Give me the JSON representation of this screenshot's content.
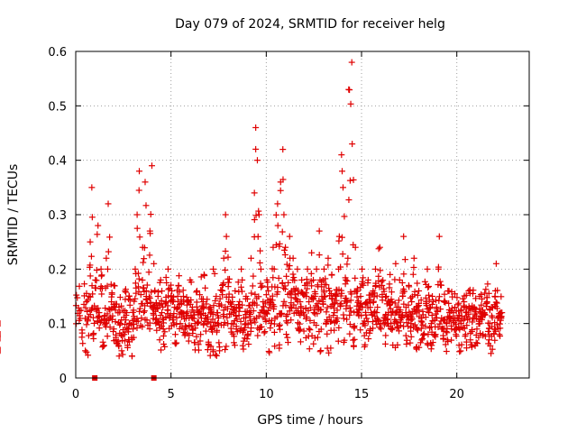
{
  "chart_data": {
    "type": "scatter",
    "title": "Day 079 of 2024, SRMTID for receiver helg",
    "xlabel": "GPS time / hours",
    "ylabel": "SRMTID / TECUs",
    "xlim": [
      0,
      23.8
    ],
    "ylim": [
      0,
      0.6
    ],
    "xticks": [
      0,
      5,
      10,
      15,
      20
    ],
    "yticks": [
      0,
      0.1,
      0.2,
      0.3,
      0.4,
      0.5,
      0.6
    ],
    "xtick_labels": [
      "0",
      "5",
      "10",
      "15",
      "20"
    ],
    "ytick_labels": [
      "0",
      "0.1",
      "0.2",
      "0.3",
      "0.4",
      "0.5",
      "0.6"
    ],
    "grid": true,
    "marker": "+",
    "color": "#e00000",
    "series": [
      {
        "name": "SRMTID",
        "x": [
          0.0,
          0.1,
          0.2,
          0.3,
          0.4,
          0.5,
          0.6,
          0.7,
          0.8,
          0.9,
          1.0,
          1.1,
          1.2,
          1.3,
          1.4,
          1.5,
          1.6,
          1.7,
          1.8,
          1.9,
          2.0,
          2.1,
          2.2,
          2.3,
          2.4,
          2.5,
          2.6,
          2.7,
          2.8,
          2.9,
          3.0,
          3.1,
          3.2,
          3.3,
          3.4,
          3.5,
          3.6,
          3.7,
          3.8,
          3.9,
          4.0,
          4.1,
          4.2,
          4.3,
          4.4,
          4.5,
          4.6,
          4.7,
          4.8,
          4.9,
          5.0,
          5.1,
          5.2,
          5.3,
          5.4,
          5.5,
          5.6,
          5.7,
          5.8,
          5.9,
          6.0,
          6.1,
          6.2,
          6.3,
          6.4,
          6.5,
          6.6,
          6.7,
          6.8,
          6.9,
          7.0,
          7.1,
          7.2,
          7.3,
          7.4,
          7.5,
          7.6,
          7.7,
          7.8,
          7.9,
          8.0,
          8.1,
          8.2,
          8.3,
          8.4,
          8.5,
          8.6,
          8.7,
          8.8,
          8.9,
          9.0,
          9.1,
          9.2,
          9.3,
          9.4,
          9.5,
          9.6,
          9.7,
          9.8,
          9.9,
          10.0,
          10.1,
          10.2,
          10.3,
          10.4,
          10.5,
          10.6,
          10.7,
          10.8,
          10.9,
          11.0,
          11.1,
          11.2,
          11.3,
          11.4,
          11.5,
          11.6,
          11.7,
          11.8,
          11.9,
          12.0,
          12.1,
          12.2,
          12.3,
          12.4,
          12.5,
          12.6,
          12.7,
          12.8,
          12.9,
          13.0,
          13.1,
          13.2,
          13.3,
          13.4,
          13.5,
          13.6,
          13.7,
          13.8,
          13.9,
          14.0,
          14.1,
          14.2,
          14.3,
          14.4,
          14.5,
          14.6,
          14.7,
          14.8,
          14.9,
          15.0,
          15.1,
          15.2,
          15.3,
          15.4,
          15.5,
          15.6,
          15.7,
          15.8,
          15.9,
          16.0,
          16.1,
          16.2,
          16.3,
          16.4,
          16.5,
          16.6,
          16.7,
          16.8,
          16.9,
          17.0,
          17.1,
          17.2,
          17.3,
          17.4,
          17.5,
          17.6,
          17.7,
          17.8,
          17.9,
          18.0,
          18.1,
          18.2,
          18.3,
          18.4,
          18.5,
          18.6,
          18.7,
          18.8,
          18.9,
          19.0,
          19.1,
          19.2,
          19.3,
          19.4,
          19.5,
          19.6,
          19.7,
          19.8,
          19.9,
          20.0,
          20.1,
          20.2,
          20.3,
          20.4,
          20.5,
          20.6,
          20.7,
          20.8,
          20.9,
          21.0,
          21.1,
          21.2,
          21.3,
          21.4,
          21.5,
          21.6,
          21.7,
          21.8,
          21.9,
          22.0,
          22.1,
          22.2,
          22.3,
          22.4,
          22.5,
          22.6,
          22.7,
          22.8,
          0.05,
          0.15,
          0.25,
          0.35,
          0.08,
          0.18,
          0.28,
          0.12,
          0.2,
          0.06,
          0.1,
          0.22,
          0.32,
          0.14,
          0.09,
          0.17,
          0.07,
          0.13,
          0.1,
          0.05,
          0.08,
          0.12,
          0.06,
          0.15,
          0.04,
          0.09,
          0.2,
          0.3,
          0.38,
          0.11,
          0.24,
          0.36,
          0.16,
          0.27,
          0.39,
          0.13,
          0.21,
          0.1,
          0.15,
          0.18,
          0.12,
          0.09,
          0.14,
          0.2,
          0.11,
          0.16,
          0.13,
          0.08,
          0.17,
          0.1,
          0.12,
          0.15,
          0.09,
          0.14,
          0.11,
          0.18,
          0.13,
          0.1,
          0.16,
          0.12,
          0.08,
          0.14,
          0.19,
          0.11,
          0.06,
          0.13,
          0.09,
          0.2,
          0.15,
          0.12,
          0.05,
          0.17,
          0.22,
          0.3,
          0.26,
          0.14,
          0.1,
          0.12,
          0.16,
          0.09,
          0.13,
          0.2,
          0.18,
          0.11,
          0.15,
          0.08,
          0.12,
          0.22,
          0.34,
          0.46,
          0.4,
          0.3,
          0.2,
          0.14,
          0.12,
          0.18,
          0.16,
          0.1,
          0.24,
          0.2,
          0.32,
          0.28,
          0.36,
          0.42,
          0.3,
          0.24,
          0.2,
          0.26,
          0.18,
          0.22,
          0.16,
          0.2,
          0.14,
          0.18,
          0.12,
          0.17,
          0.2,
          0.14,
          0.23,
          0.18,
          0.15,
          0.2,
          0.27,
          0.18,
          0.14,
          0.2,
          0.1,
          0.22,
          0.16,
          0.19,
          0.12,
          0.15,
          0.2,
          0.26,
          0.41,
          0.35,
          0.18,
          0.22,
          0.53,
          0.58,
          0.43,
          0.24,
          0.16,
          0.12,
          0.15,
          0.2,
          0.1,
          0.14,
          0.18,
          0.09,
          0.12,
          0.16,
          0.2,
          0.13,
          0.24,
          0.17,
          0.11,
          0.15,
          0.12,
          0.19,
          0.1,
          0.14,
          0.21,
          0.13,
          0.18,
          0.11,
          0.15,
          0.26,
          0.12,
          0.17,
          0.1,
          0.14,
          0.22,
          0.13,
          0.09,
          0.16,
          0.11,
          0.08,
          0.14,
          0.2,
          0.12,
          0.1,
          0.15,
          0.08,
          0.13,
          0.26,
          0.11,
          0.09,
          0.14,
          0.1,
          0.07,
          0.12,
          0.09,
          0.13,
          0.08,
          0.11,
          0.06,
          0.1,
          0.14,
          0.08,
          0.12,
          0.16,
          0.07,
          0.11,
          0.13,
          0.09,
          0.15,
          0.1,
          0.08,
          0.12,
          0.14,
          0.07,
          0.1,
          0.13,
          0.09,
          0.21,
          0.11,
          0.08,
          0.12,
          0.1
        ]
      }
    ],
    "markers_on_axis": [
      1.0,
      4.1
    ]
  }
}
